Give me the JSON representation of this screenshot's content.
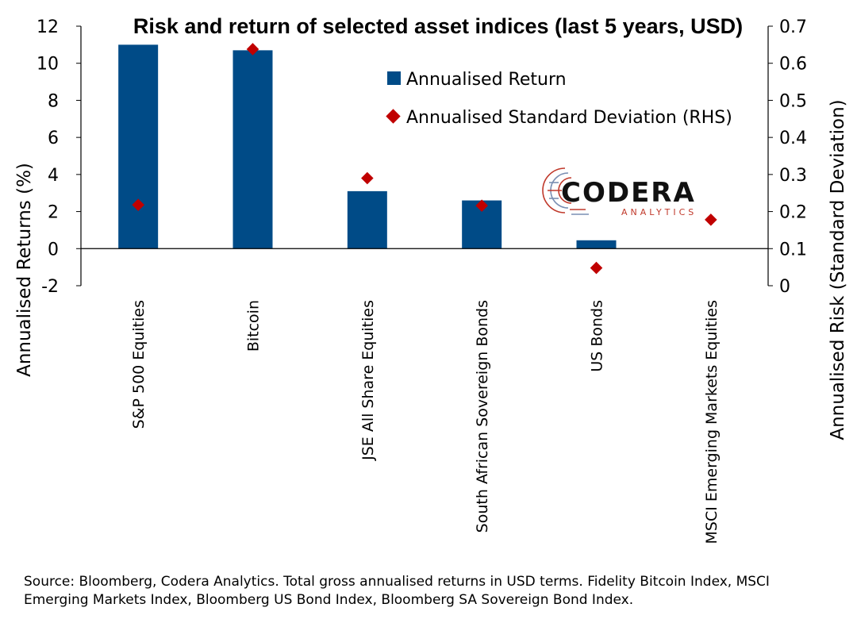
{
  "chart_data": {
    "type": "bar",
    "title": "Risk and return of selected asset indices (last 5 years, USD)",
    "categories": [
      "S&P 500 Equities",
      "Bitcoin",
      "JSE All Share Equities",
      "South African Sovereign Bonds",
      "US Bonds",
      "MSCI Emerging Markets Equities"
    ],
    "series": [
      {
        "name": "Annualised Return",
        "type": "bar",
        "axis": "left",
        "color": "#004b87",
        "values": [
          11.0,
          10.7,
          3.1,
          2.6,
          0.45,
          null
        ]
      },
      {
        "name": "Annualised Standard Deviation (RHS)",
        "type": "scatter",
        "axis": "right",
        "color": "#c00000",
        "values": [
          0.218,
          0.638,
          0.29,
          0.216,
          0.048,
          0.178
        ]
      }
    ],
    "ylabel": "Annualised Returns (%)",
    "y2label": "Annualised Risk (Standard Deviation)",
    "ylim": [
      -2,
      12
    ],
    "y2lim": [
      0,
      0.7
    ],
    "yticks": [
      "-2",
      "0",
      "2",
      "4",
      "6",
      "8",
      "10",
      "12"
    ],
    "y2ticks": [
      "0",
      "0.1",
      "0.2",
      "0.3",
      "0.4",
      "0.5",
      "0.6",
      "0.7"
    ],
    "legend_position": "top-right",
    "grid": false
  },
  "logo": {
    "main": "CODERA",
    "sub": "ANALYTICS"
  },
  "source_note": "Source: Bloomberg, Codera Analytics. Total gross annualised returns in USD terms. Fidelity Bitcoin Index, MSCI Emerging Markets Index, Bloomberg US Bond Index, Bloomberg SA Sovereign Bond Index."
}
